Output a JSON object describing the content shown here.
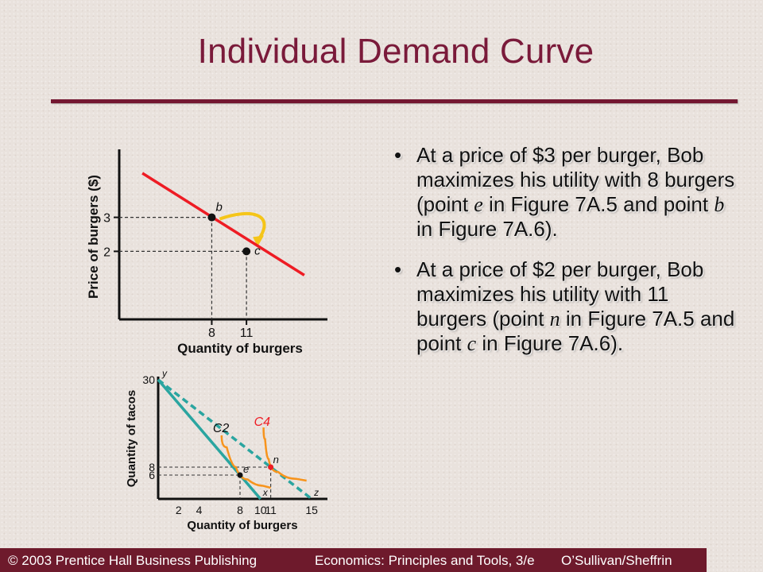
{
  "slide": {
    "title": "Individual Demand Curve",
    "bullets": [
      {
        "parts": [
          "At a price of $3 per burger, Bob maximizes his utility with 8 burgers (point ",
          "e",
          " in Figure 7A.5 and point ",
          "b",
          " in Figure 7A.6)."
        ]
      },
      {
        "parts": [
          "At a price of $2 per burger, Bob maximizes his utility with 11 burgers (point ",
          "n",
          " in Figure 7A.5 and point ",
          "c",
          " in Figure 7A.6)."
        ]
      }
    ],
    "bullet_symbol": "•"
  },
  "footer": {
    "left": "© 2003 Prentice Hall Business Publishing",
    "center": "Economics: Principles and Tools, 3/e",
    "right": "O’Sullivan/Sheffrin"
  },
  "colors": {
    "title": "#7a1a3a",
    "rule": "#741832",
    "footer_bg": "#6e1a2c",
    "demand_line": "#ee1c24",
    "budget_line": "#2aa5a0",
    "indifference_curve": "#f7941d",
    "arrow": "#f5c518"
  },
  "chart_data": [
    {
      "type": "line",
      "xlabel": "Quantity of burgers",
      "ylabel": "Price of burgers ($)",
      "xticks": [
        "8",
        "11"
      ],
      "yticks": [
        "3",
        "2"
      ],
      "series": [
        {
          "values_xy": [
            [
              2,
              4.3
            ],
            [
              16,
              1.3
            ]
          ]
        }
      ],
      "points": [
        {
          "label": "b",
          "x": 8,
          "y": 3
        },
        {
          "label": "c",
          "x": 11,
          "y": 2
        }
      ],
      "arrow": {
        "from": "b",
        "to": "c"
      }
    },
    {
      "type": "line",
      "xlabel": "Quantity of burgers",
      "ylabel": "Quantity of tacos",
      "xticks": [
        "2",
        "4",
        "8",
        "10",
        "11",
        "15"
      ],
      "yticks": [
        "30",
        "8",
        "6"
      ],
      "budget_lines": [
        {
          "x": [
            0,
            10
          ],
          "y": [
            30,
            0
          ]
        },
        {
          "x": [
            0,
            15
          ],
          "y": [
            30,
            0
          ],
          "dashed": true
        }
      ],
      "indifference_curves": [
        {
          "label": "C2",
          "points": [
            [
              6.2,
              16
            ],
            [
              7.2,
              10
            ],
            [
              8,
              6
            ],
            [
              9.5,
              3.8
            ],
            [
              11,
              2.8
            ]
          ]
        },
        {
          "label": "C4",
          "points": [
            [
              10.3,
              18
            ],
            [
              10.6,
              12
            ],
            [
              11,
              8
            ],
            [
              12.5,
              5.5
            ],
            [
              14.5,
              4.6
            ]
          ]
        }
      ],
      "points": [
        {
          "label": "e",
          "x": 8,
          "y": 6
        },
        {
          "label": "n",
          "x": 11,
          "y": 8
        }
      ],
      "axis_point_labels": [
        {
          "label": "y",
          "x": 0,
          "y": 30
        },
        {
          "label": "x",
          "x": 10,
          "y": 0
        },
        {
          "label": "z",
          "x": 15,
          "y": 0
        }
      ]
    }
  ]
}
